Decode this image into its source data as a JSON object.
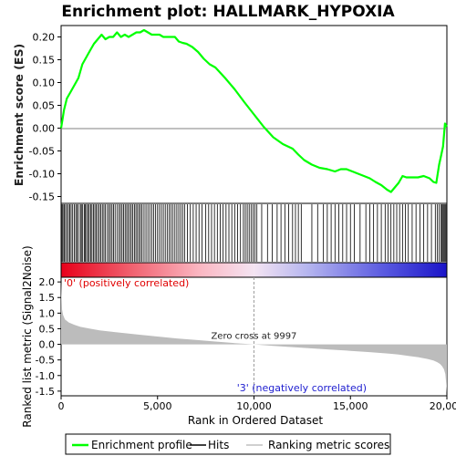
{
  "chart_data": {
    "type": "line",
    "title": "Enrichment plot: HALLMARK_HYPOXIA",
    "top_panel": {
      "ylabel": "Enrichment score (ES)",
      "ylim": [
        -0.165,
        0.225
      ],
      "yticks": [
        -0.15,
        -0.1,
        -0.05,
        0.0,
        0.05,
        0.1,
        0.15,
        0.2
      ],
      "ytick_labels": [
        "-0.15",
        "-0.10",
        "-0.05",
        "0.00",
        "0.05",
        "0.10",
        "0.15",
        "0.20"
      ],
      "series": [
        {
          "name": "Enrichment profile",
          "color": "#00ff00",
          "x": [
            0,
            150,
            300,
            500,
            700,
            900,
            1100,
            1300,
            1500,
            1700,
            1900,
            2100,
            2300,
            2500,
            2700,
            2900,
            3100,
            3300,
            3500,
            3700,
            3900,
            4100,
            4300,
            4500,
            4700,
            4900,
            5100,
            5300,
            5500,
            5700,
            5900,
            6100,
            6300,
            6500,
            6800,
            7100,
            7400,
            7700,
            8000,
            8500,
            9000,
            9500,
            10000,
            10500,
            11000,
            11500,
            12000,
            12300,
            12600,
            13000,
            13400,
            13800,
            14200,
            14500,
            14800,
            15100,
            15400,
            15700,
            16000,
            16300,
            16600,
            16900,
            17100,
            17300,
            17500,
            17700,
            17900,
            18200,
            18500,
            18800,
            19100,
            19300,
            19450,
            19600,
            19700,
            19800,
            19900,
            20000
          ],
          "y": [
            0.0,
            0.04,
            0.065,
            0.08,
            0.095,
            0.11,
            0.14,
            0.155,
            0.17,
            0.185,
            0.195,
            0.205,
            0.195,
            0.2,
            0.2,
            0.21,
            0.2,
            0.205,
            0.2,
            0.205,
            0.21,
            0.21,
            0.215,
            0.21,
            0.205,
            0.205,
            0.205,
            0.2,
            0.2,
            0.2,
            0.2,
            0.19,
            0.187,
            0.185,
            0.178,
            0.167,
            0.152,
            0.14,
            0.133,
            0.11,
            0.085,
            0.057,
            0.03,
            0.003,
            -0.02,
            -0.035,
            -0.045,
            -0.058,
            -0.07,
            -0.08,
            -0.087,
            -0.09,
            -0.095,
            -0.09,
            -0.09,
            -0.095,
            -0.1,
            -0.105,
            -0.11,
            -0.118,
            -0.125,
            -0.135,
            -0.14,
            -0.13,
            -0.12,
            -0.105,
            -0.108,
            -0.108,
            -0.108,
            -0.105,
            -0.11,
            -0.118,
            -0.12,
            -0.08,
            -0.06,
            -0.04,
            0.01,
            0.003
          ]
        }
      ]
    },
    "hits": {
      "name": "Hits",
      "positions": [
        10,
        50,
        100,
        160,
        230,
        300,
        380,
        450,
        520,
        600,
        680,
        760,
        830,
        900,
        1000,
        1050,
        1120,
        1200,
        1260,
        1320,
        1400,
        1460,
        1530,
        1600,
        1680,
        1750,
        1820,
        1900,
        1980,
        2060,
        2140,
        2220,
        2300,
        2400,
        2480,
        2560,
        2640,
        2720,
        2800,
        2900,
        3000,
        3080,
        3160,
        3240,
        3320,
        3400,
        3480,
        3560,
        3640,
        3720,
        3800,
        3880,
        3960,
        4040,
        4120,
        4200,
        4300,
        4400,
        4500,
        4600,
        4700,
        4800,
        4900,
        5000,
        5100,
        5200,
        5300,
        5400,
        5500,
        5600,
        5700,
        5800,
        5900,
        6000,
        6100,
        6200,
        6300,
        6400,
        6550,
        6700,
        6850,
        7000,
        7150,
        7300,
        7500,
        7650,
        7800,
        7950,
        8100,
        8250,
        8400,
        8550,
        8700,
        8850,
        9000,
        9150,
        9300,
        9450,
        9550,
        9650,
        9750,
        9850,
        9950,
        10050,
        10150,
        10400,
        10700,
        10950,
        11200,
        11400,
        11600,
        11800,
        12000,
        12150,
        12300,
        12450,
        13000,
        13300,
        13600,
        13800,
        14000,
        14200,
        14400,
        14600,
        14800,
        15000,
        15200,
        15500,
        15800,
        16000,
        16200,
        16400,
        16600,
        16800,
        16950,
        17100,
        17250,
        17400,
        17550,
        17700,
        17850,
        18000,
        18200,
        18400,
        18600,
        18800,
        19000,
        19200,
        19400,
        19500,
        19600,
        19700,
        19750,
        19800,
        19850,
        19900,
        19950
      ]
    },
    "bottom_panel": {
      "ylabel": "Ranked list metric (Signal2Noise)",
      "xlabel": "Rank in Ordered Dataset",
      "ylim": [
        -1.65,
        2.15
      ],
      "yticks": [
        -1.5,
        -1.0,
        -0.5,
        0.0,
        0.5,
        1.0,
        1.5,
        2.0
      ],
      "ytick_labels": [
        "-1.5",
        "-1.0",
        "-0.5",
        "0.0",
        "0.5",
        "1.0",
        "1.5",
        "2.0"
      ],
      "xlim": [
        0,
        20000
      ],
      "xticks": [
        0,
        5000,
        10000,
        15000,
        20000
      ],
      "xtick_labels": [
        "0",
        "5,000",
        "10,000",
        "15,000",
        "20,000"
      ],
      "series": [
        {
          "name": "Ranking metric scores",
          "color": "#c0c0c0",
          "x": [
            0,
            20,
            50,
            100,
            200,
            400,
            700,
            1000,
            1500,
            2000,
            3000,
            4000,
            5000,
            6000,
            7000,
            8000,
            9000,
            9997,
            11000,
            12000,
            13000,
            14000,
            15000,
            16000,
            17000,
            17500,
            18000,
            18500,
            19000,
            19300,
            19500,
            19650,
            19750,
            19850,
            19920,
            19970,
            20000
          ],
          "y": [
            2.0,
            1.6,
            1.1,
            0.95,
            0.8,
            0.7,
            0.62,
            0.56,
            0.5,
            0.45,
            0.38,
            0.31,
            0.25,
            0.19,
            0.14,
            0.09,
            0.04,
            0.0,
            -0.05,
            -0.09,
            -0.13,
            -0.17,
            -0.21,
            -0.25,
            -0.3,
            -0.33,
            -0.37,
            -0.41,
            -0.47,
            -0.52,
            -0.57,
            -0.63,
            -0.7,
            -0.8,
            -0.95,
            -1.3,
            -1.55
          ]
        }
      ],
      "zero_cross": 9997,
      "zero_cross_label": "Zero cross at 9997",
      "pos_label": "'0' (positively correlated)",
      "neg_label": "'3' (negatively correlated)"
    },
    "legend": {
      "placement": "bottom",
      "items": [
        {
          "label": "Enrichment profile",
          "color": "#00ff00"
        },
        {
          "label": "Hits",
          "color": "#000000"
        },
        {
          "label": "Ranking metric scores",
          "color": "#c0c0c0"
        }
      ]
    }
  }
}
